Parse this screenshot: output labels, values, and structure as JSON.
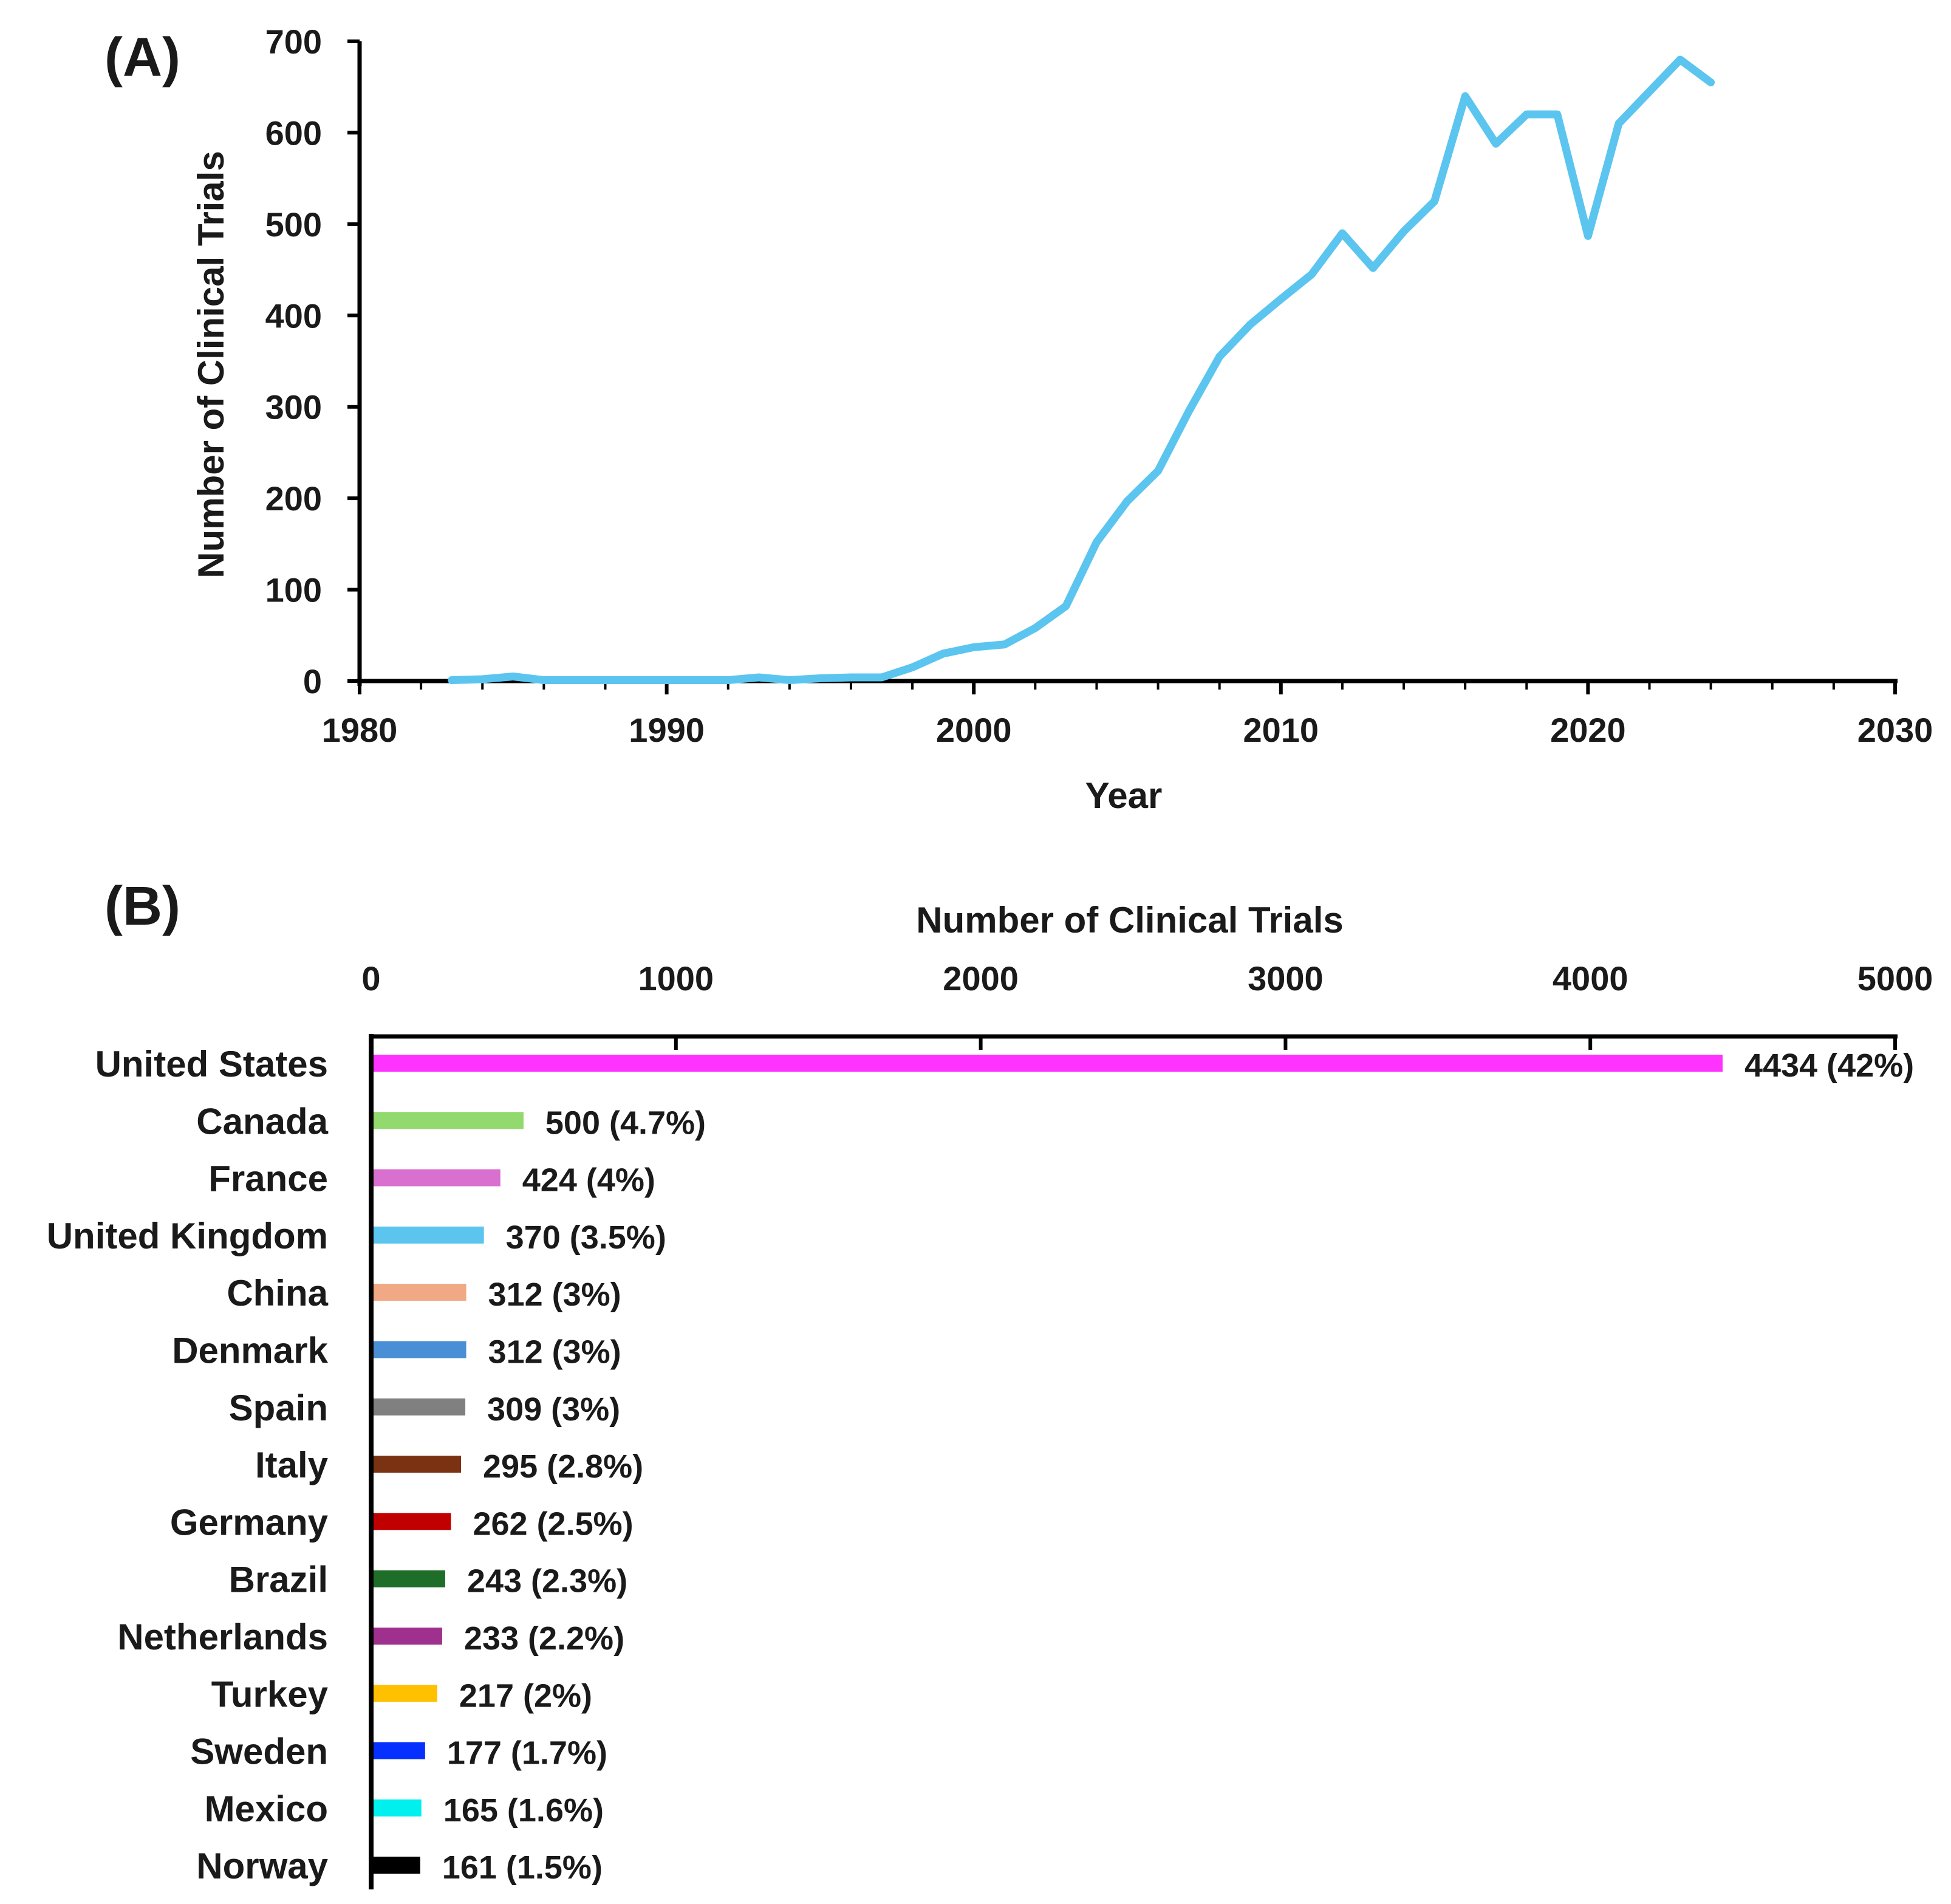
{
  "chart_data": [
    {
      "panel_label": "(A)",
      "type": "line",
      "xlabel": "Year",
      "ylabel": "Number of Clinical Trials",
      "xlim": [
        1980,
        2030
      ],
      "ylim": [
        0,
        700
      ],
      "x_ticks": [
        1980,
        1990,
        2000,
        2010,
        2020,
        2030
      ],
      "y_ticks": [
        0,
        100,
        200,
        300,
        400,
        500,
        600,
        700
      ],
      "grid": false,
      "color": "#5bc5ef",
      "series": [
        {
          "name": "Number of Clinical Trials",
          "x": [
            1983,
            1984,
            1985,
            1986,
            1987,
            1988,
            1989,
            1990,
            1991,
            1992,
            1993,
            1994,
            1995,
            1996,
            1997,
            1998,
            1999,
            2000,
            2001,
            2002,
            2003,
            2004,
            2005,
            2006,
            2007,
            2008,
            2009,
            2010,
            2011,
            2012,
            2013,
            2014,
            2015,
            2016,
            2017,
            2018,
            2019,
            2020,
            2021,
            2022,
            2023,
            2024
          ],
          "y": [
            1,
            2,
            5,
            1,
            1,
            1,
            1,
            1,
            1,
            1,
            4,
            1,
            3,
            4,
            4,
            15,
            30,
            37,
            40,
            58,
            82,
            152,
            197,
            230,
            295,
            355,
            390,
            418,
            445,
            490,
            452,
            492,
            525,
            640,
            588,
            620,
            620,
            487,
            610,
            645,
            680,
            655
          ]
        }
      ]
    },
    {
      "panel_label": "(B)",
      "type": "bar",
      "orientation": "horizontal",
      "xlabel": "Number of Clinical Trials",
      "xlim": [
        0,
        5000
      ],
      "x_ticks": [
        0,
        1000,
        2000,
        3000,
        4000,
        5000
      ],
      "grid": false,
      "categories": [
        "United States",
        "Canada",
        "France",
        "United Kingdom",
        "China",
        "Denmark",
        "Spain",
        "Italy",
        "Germany",
        "Brazil",
        "Netherlands",
        "Turkey",
        "Sweden",
        "Mexico",
        "Norway"
      ],
      "values": [
        4434,
        500,
        424,
        370,
        312,
        312,
        309,
        295,
        262,
        243,
        233,
        217,
        177,
        165,
        161
      ],
      "percent_labels": [
        "42%",
        "4.7%",
        "4%",
        "3.5%",
        "3%",
        "3%",
        "3%",
        "2.8%",
        "2.5%",
        "2.3%",
        "2.2%",
        "2%",
        "1.7%",
        "1.6%",
        "1.5%"
      ],
      "colors": [
        "#ff33ff",
        "#92d96e",
        "#d96fcf",
        "#5bc5ef",
        "#f1a985",
        "#4a8fd6",
        "#808080",
        "#7b3213",
        "#c00000",
        "#1e6e2a",
        "#a0308e",
        "#ffc000",
        "#0530ff",
        "#00f0f0",
        "#000000"
      ]
    }
  ]
}
